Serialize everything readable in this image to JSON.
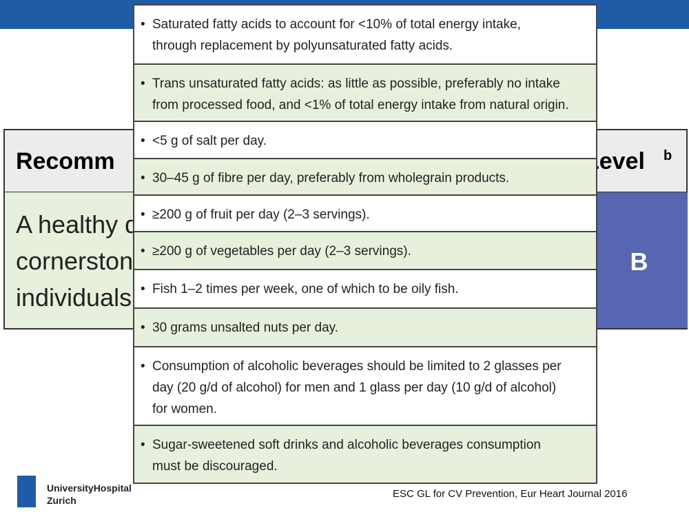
{
  "background_table": {
    "header": [
      "Recomm",
      "Level",
      "b"
    ],
    "body": [
      [
        "A healthy d",
        "cornerston",
        "individuals."
      ],
      "B"
    ]
  },
  "overlay_list": {
    "rows": [
      [
        "Saturated fatty acids to account for <10% of total energy intake,",
        "through replacement by polyunsaturated fatty acids."
      ],
      [
        "Trans unsaturated fatty acids: as little as possible, preferably no intake",
        "from processed food, and <1% of total energy intake from natural origin."
      ],
      [
        "<5 g of salt per day."
      ],
      [
        "30–45 g of fibre per day, preferably from wholegrain products."
      ],
      [
        "≥200 g of fruit per day (2–3 servings)."
      ],
      [
        "≥200 g of vegetables per day (2–3 servings)."
      ],
      [
        "Fish 1–2 times per week, one of which to be oily fish."
      ],
      [
        "30 grams unsalted nuts per day."
      ],
      [
        "Consumption of alcoholic beverages should be limited to 2 glasses per",
        "day (20 g/d of alcohol) for men and 1 glass per day (10 g/d of alcohol)",
        "for women."
      ],
      [
        "Sugar-sweetened soft drinks and alcoholic beverages consumption",
        "must be discouraged."
      ]
    ]
  },
  "footer": {
    "logo": [
      "UniversityHospital",
      "Zurich"
    ],
    "citation": "ESC GL for CV Prevention, Eur Heart Journal 2016"
  }
}
